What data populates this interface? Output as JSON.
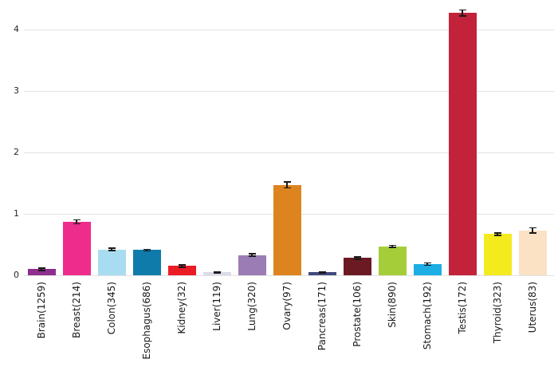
{
  "chart_data": {
    "type": "bar",
    "title": "",
    "xlabel": "",
    "ylabel": "",
    "categories": [
      "Brain(1259)",
      "Breast(214)",
      "Colon(345)",
      "Esophagus(686)",
      "Kidney(32)",
      "Liver(119)",
      "Lung(320)",
      "Ovary(97)",
      "Pancreas(171)",
      "Prostate(106)",
      "Skin(890)",
      "Stomach(192)",
      "Testis(172)",
      "Thyroid(323)",
      "Uterus(83)"
    ],
    "values": [
      0.1,
      0.87,
      0.42,
      0.41,
      0.15,
      0.05,
      0.33,
      1.47,
      0.05,
      0.28,
      0.47,
      0.18,
      4.27,
      0.67,
      0.73
    ],
    "errors": [
      0.02,
      0.03,
      0.02,
      0.015,
      0.02,
      0.01,
      0.02,
      0.05,
      0.01,
      0.02,
      0.015,
      0.02,
      0.05,
      0.02,
      0.04
    ],
    "bar_colors": [
      "#8E2E8E",
      "#EE2C8B",
      "#A8DCF0",
      "#0F7BAB",
      "#EC1C24",
      "#DCD9E8",
      "#9C7CB5",
      "#DD841F",
      "#424A7D",
      "#6B1A24",
      "#A5CD39",
      "#1CAEE4",
      "#C2233A",
      "#F4EB1F",
      "#FBE2C5"
    ],
    "ylim": [
      0,
      4.4
    ],
    "yticks": [
      0,
      1,
      2,
      3,
      4
    ],
    "grid": true,
    "legend": "none",
    "gridline_color": "#e3e3e3",
    "error_bar_color": "#1a1a1a",
    "background_color": "#ffffff"
  }
}
